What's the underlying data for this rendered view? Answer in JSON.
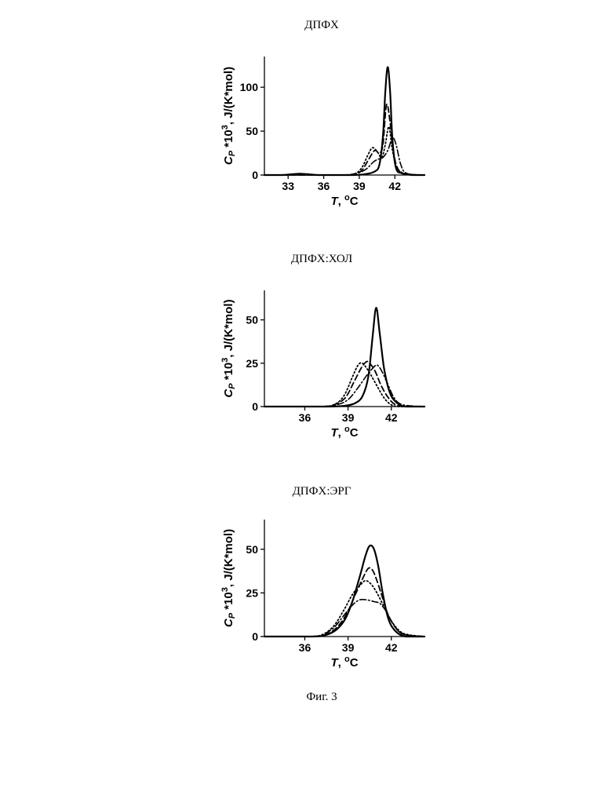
{
  "figure": {
    "caption": "Фиг. 3"
  },
  "chart_data": [
    {
      "type": "line",
      "title": "ДПФХ",
      "xlabel": "T, °C",
      "ylabel": "Cp *10³, J/(K*mol)",
      "xlim": [
        31.0,
        44.5
      ],
      "ylim": [
        0,
        135
      ],
      "xticks": [
        33,
        36,
        39,
        42
      ],
      "yticks": [
        0,
        50,
        100
      ],
      "series": [
        {
          "style": "solid",
          "x": [
            31.0,
            32.5,
            33.4,
            34.0,
            34.6,
            35.5,
            37.0,
            38.5,
            39.5,
            40.3,
            40.7,
            41.0,
            41.2,
            41.4,
            41.6,
            41.8,
            42.1,
            42.6,
            43.5,
            44.5
          ],
          "y": [
            0,
            0,
            1,
            1.5,
            1,
            0,
            0,
            0,
            1,
            4,
            12,
            45,
            95,
            123,
            95,
            40,
            8,
            2,
            0,
            0
          ]
        },
        {
          "style": "dashed",
          "x": [
            31.0,
            37.0,
            38.5,
            39.2,
            39.8,
            40.3,
            40.7,
            41.0,
            41.3,
            41.6,
            41.9,
            42.3,
            43.0,
            44.5
          ],
          "y": [
            0,
            0,
            1,
            5,
            18,
            28,
            25,
            35,
            80,
            60,
            25,
            6,
            1,
            0
          ]
        },
        {
          "style": "dotted",
          "x": [
            31.0,
            37.0,
            38.5,
            39.2,
            39.7,
            40.1,
            40.5,
            40.9,
            41.2,
            41.5,
            41.8,
            42.2,
            43.0,
            44.5
          ],
          "y": [
            0,
            0,
            1,
            8,
            22,
            31,
            27,
            20,
            35,
            55,
            28,
            8,
            1,
            0
          ]
        },
        {
          "style": "dashdot",
          "x": [
            31.0,
            37.0,
            38.5,
            39.5,
            40.2,
            40.6,
            41.0,
            41.4,
            41.8,
            42.1,
            42.5,
            43.0,
            44.5
          ],
          "y": [
            0,
            0,
            1,
            6,
            15,
            18,
            20,
            28,
            42,
            35,
            12,
            2,
            0
          ]
        }
      ]
    },
    {
      "type": "line",
      "title": "ДПФХ:ХОЛ",
      "xlabel": "T, °C",
      "ylabel": "Cp *10³, J/(K*mol)",
      "xlim": [
        33.2,
        44.3
      ],
      "ylim": [
        0,
        67
      ],
      "xticks": [
        36,
        39,
        42
      ],
      "yticks": [
        0,
        25,
        50
      ],
      "series": [
        {
          "style": "solid",
          "x": [
            33.2,
            37.5,
            38.8,
            39.5,
            40.0,
            40.4,
            40.7,
            40.95,
            41.2,
            41.5,
            41.9,
            42.4,
            43.0,
            44.3
          ],
          "y": [
            0,
            0,
            0.5,
            2,
            6,
            17,
            40,
            57,
            42,
            22,
            8,
            2,
            0,
            0
          ]
        },
        {
          "style": "dashed",
          "x": [
            33.2,
            37.0,
            38.0,
            38.8,
            39.4,
            39.9,
            40.3,
            40.6,
            40.9,
            41.3,
            41.8,
            42.3,
            43.0,
            44.3
          ],
          "y": [
            0,
            0,
            1,
            5,
            14,
            22,
            26,
            24,
            20,
            12,
            5,
            1,
            0,
            0
          ]
        },
        {
          "style": "dotted",
          "x": [
            33.2,
            37.0,
            38.0,
            38.7,
            39.3,
            39.7,
            40.0,
            40.3,
            40.6,
            41.0,
            41.5,
            42.0,
            42.6,
            44.3
          ],
          "y": [
            0,
            0,
            1,
            6,
            17,
            24,
            25,
            22,
            18,
            12,
            5,
            1,
            0,
            0
          ]
        },
        {
          "style": "dashdot",
          "x": [
            33.2,
            37.0,
            38.2,
            39.0,
            39.7,
            40.3,
            40.7,
            41.0,
            41.3,
            41.7,
            42.2,
            42.8,
            44.3
          ],
          "y": [
            0,
            0,
            1,
            4,
            11,
            18,
            22,
            24,
            21,
            14,
            5,
            1,
            0
          ]
        }
      ]
    },
    {
      "type": "line",
      "title": "ДПФХ:ЭРГ",
      "xlabel": "T, °C",
      "ylabel": "Cp *10³, J/(K*mol)",
      "xlim": [
        33.2,
        44.3
      ],
      "ylim": [
        0,
        67
      ],
      "xticks": [
        36,
        39,
        42
      ],
      "yticks": [
        0,
        25,
        50
      ],
      "series": [
        {
          "style": "solid",
          "x": [
            33.2,
            36.5,
            37.5,
            38.2,
            38.8,
            39.3,
            39.8,
            40.2,
            40.5,
            40.8,
            41.1,
            41.4,
            41.8,
            42.3,
            43.0,
            44.3
          ],
          "y": [
            0,
            0,
            1,
            4,
            10,
            20,
            34,
            46,
            52,
            50,
            40,
            25,
            10,
            3,
            0,
            0
          ]
        },
        {
          "style": "dashed",
          "x": [
            33.2,
            36.5,
            37.4,
            38.2,
            38.9,
            39.5,
            40.0,
            40.4,
            40.7,
            41.0,
            41.4,
            41.8,
            42.4,
            43.0,
            44.3
          ],
          "y": [
            0,
            0,
            1,
            5,
            13,
            24,
            33,
            39,
            38,
            32,
            22,
            12,
            4,
            1,
            0
          ]
        },
        {
          "style": "dotted",
          "x": [
            33.2,
            36.3,
            37.2,
            38.0,
            38.7,
            39.3,
            39.8,
            40.2,
            40.6,
            41.0,
            41.5,
            42.0,
            42.6,
            43.2,
            44.3
          ],
          "y": [
            0,
            0,
            1,
            6,
            15,
            24,
            29,
            32,
            30,
            25,
            17,
            9,
            3,
            1,
            0
          ]
        },
        {
          "style": "dashdot",
          "x": [
            33.2,
            36.3,
            37.2,
            38.0,
            38.7,
            39.3,
            39.8,
            40.3,
            40.8,
            41.2,
            41.6,
            42.0,
            42.5,
            43.0,
            44.3
          ],
          "y": [
            0,
            0,
            1,
            5,
            12,
            18,
            21,
            21,
            20,
            19,
            15,
            9,
            3,
            1,
            0
          ]
        }
      ]
    }
  ]
}
